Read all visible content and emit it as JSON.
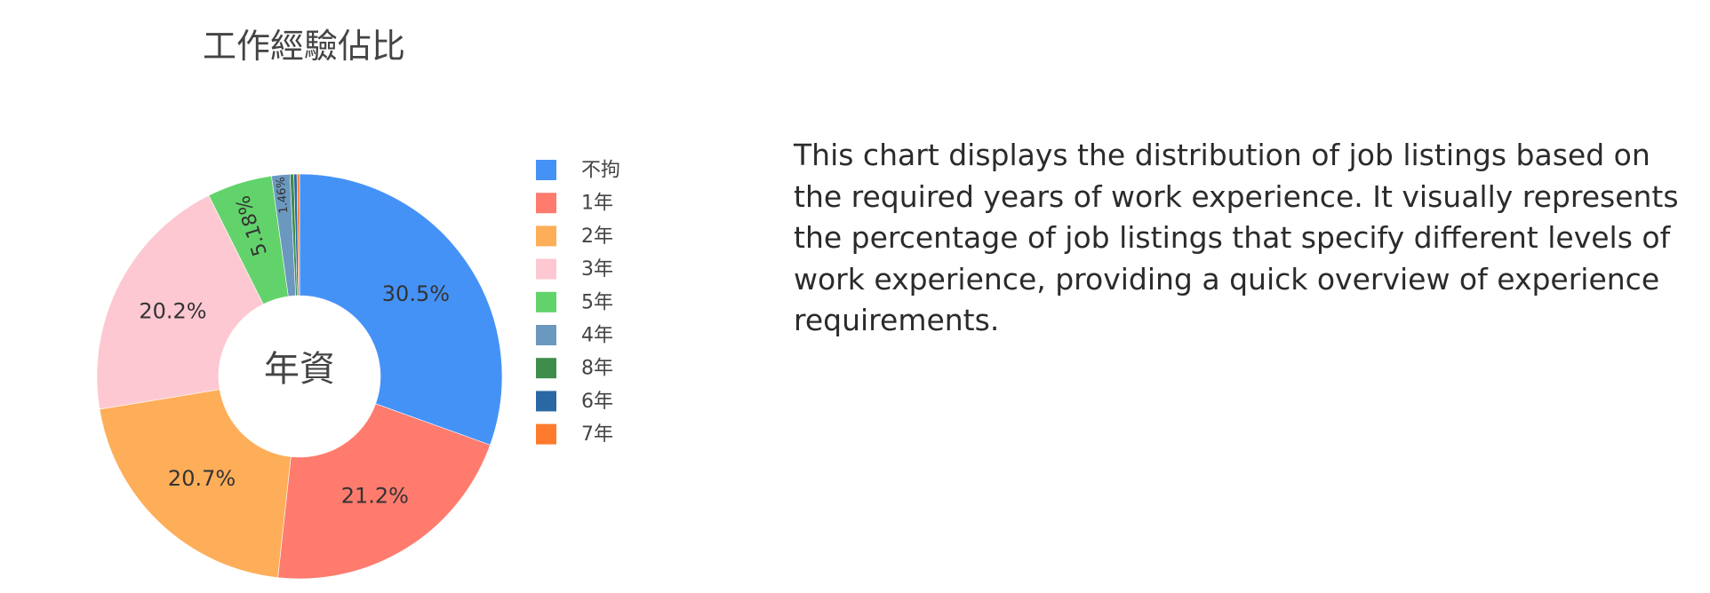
{
  "chart_data": {
    "type": "pie",
    "hole": true,
    "title": "工作經驗佔比",
    "center_label": "年資",
    "legend_position": "right",
    "slices": [
      {
        "label": "不拘",
        "value": 30.5,
        "text": "30.5%",
        "color": "#4592f7"
      },
      {
        "label": "1年",
        "value": 21.2,
        "text": "21.2%",
        "color": "#fe7b6e"
      },
      {
        "label": "2年",
        "value": 20.7,
        "text": "20.7%",
        "color": "#feae59"
      },
      {
        "label": "3年",
        "value": 20.2,
        "text": "20.2%",
        "color": "#fdc8d1"
      },
      {
        "label": "5年",
        "value": 5.18,
        "text": "5.18%",
        "color": "#62d36a"
      },
      {
        "label": "4年",
        "value": 1.46,
        "text": "1.46%",
        "color": "#6b98be"
      },
      {
        "label": "8年",
        "value": 0.3,
        "text": "",
        "color": "#3e8d4b"
      },
      {
        "label": "6年",
        "value": 0.25,
        "text": "",
        "color": "#2a68a4"
      },
      {
        "label": "7年",
        "value": 0.2,
        "text": "",
        "color": "#fe7a2d"
      }
    ]
  },
  "description": "This chart displays the distribution of job listings based on the required years of work experience. It visually represents the percentage of job listings that specify different levels of work experience, providing a quick overview of experience requirements."
}
